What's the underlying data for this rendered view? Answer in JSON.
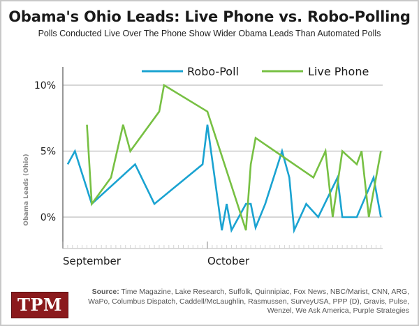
{
  "chart_data": {
    "type": "line",
    "title": "Obama's Ohio Leads: Live Phone vs. Robo-Polling",
    "subtitle": "Polls Conducted Live Over The Phone Show Wider Obama Leads Than Automated Polls",
    "xlabel": "",
    "ylabel": "Obama Leads (Ohio)",
    "x_unit": "days since Sep 1",
    "xlim": [
      0,
      66
    ],
    "ylim": [
      -2.5,
      11
    ],
    "y_ticks": [
      0,
      5,
      10
    ],
    "y_tick_labels": [
      "0%",
      "5%",
      "10%"
    ],
    "x_tick_labels": [
      {
        "label": "September",
        "day": 0
      },
      {
        "label": "October",
        "day": 30
      }
    ],
    "grid": true,
    "legend_position": "top-center",
    "series": [
      {
        "name": "Robo-Poll",
        "color": "#1aa3d1",
        "points": [
          [
            1,
            4
          ],
          [
            2.5,
            5
          ],
          [
            6,
            1
          ],
          [
            15,
            4
          ],
          [
            19,
            1
          ],
          [
            29,
            4
          ],
          [
            30,
            7
          ],
          [
            33,
            -1
          ],
          [
            34,
            1
          ],
          [
            35,
            -1
          ],
          [
            38,
            1
          ],
          [
            39,
            1
          ],
          [
            40,
            -0.8
          ],
          [
            42,
            1
          ],
          [
            45.5,
            5
          ],
          [
            47,
            3
          ],
          [
            48,
            -1
          ],
          [
            50.5,
            1
          ],
          [
            53,
            0
          ],
          [
            57,
            3
          ],
          [
            58,
            0
          ],
          [
            61,
            0
          ],
          [
            64.5,
            3
          ],
          [
            66,
            0
          ]
        ]
      },
      {
        "name": "Live Phone",
        "color": "#77c043",
        "points": [
          [
            5,
            7
          ],
          [
            6,
            1
          ],
          [
            10,
            3
          ],
          [
            12.5,
            7
          ],
          [
            14,
            5
          ],
          [
            20,
            8
          ],
          [
            21,
            10
          ],
          [
            30,
            8
          ],
          [
            38,
            -1
          ],
          [
            39,
            4
          ],
          [
            40,
            6
          ],
          [
            52,
            3
          ],
          [
            54.5,
            5
          ],
          [
            56,
            0
          ],
          [
            58,
            5
          ],
          [
            61,
            4
          ],
          [
            62,
            5
          ],
          [
            63.5,
            0
          ],
          [
            66,
            5
          ]
        ]
      }
    ]
  },
  "footer": {
    "logo": "TPM",
    "source_label": "Source:",
    "source_text": " Time Magazine, Lake Research, Suffolk, Quinnipiac, Fox News, NBC/Marist, CNN, ARG, WaPo, Columbus Dispatch, Caddell/McLaughlin, Rasmussen, SurveyUSA, PPP (D), Gravis, Pulse, Wenzel, We Ask America, Purple Strategies"
  }
}
